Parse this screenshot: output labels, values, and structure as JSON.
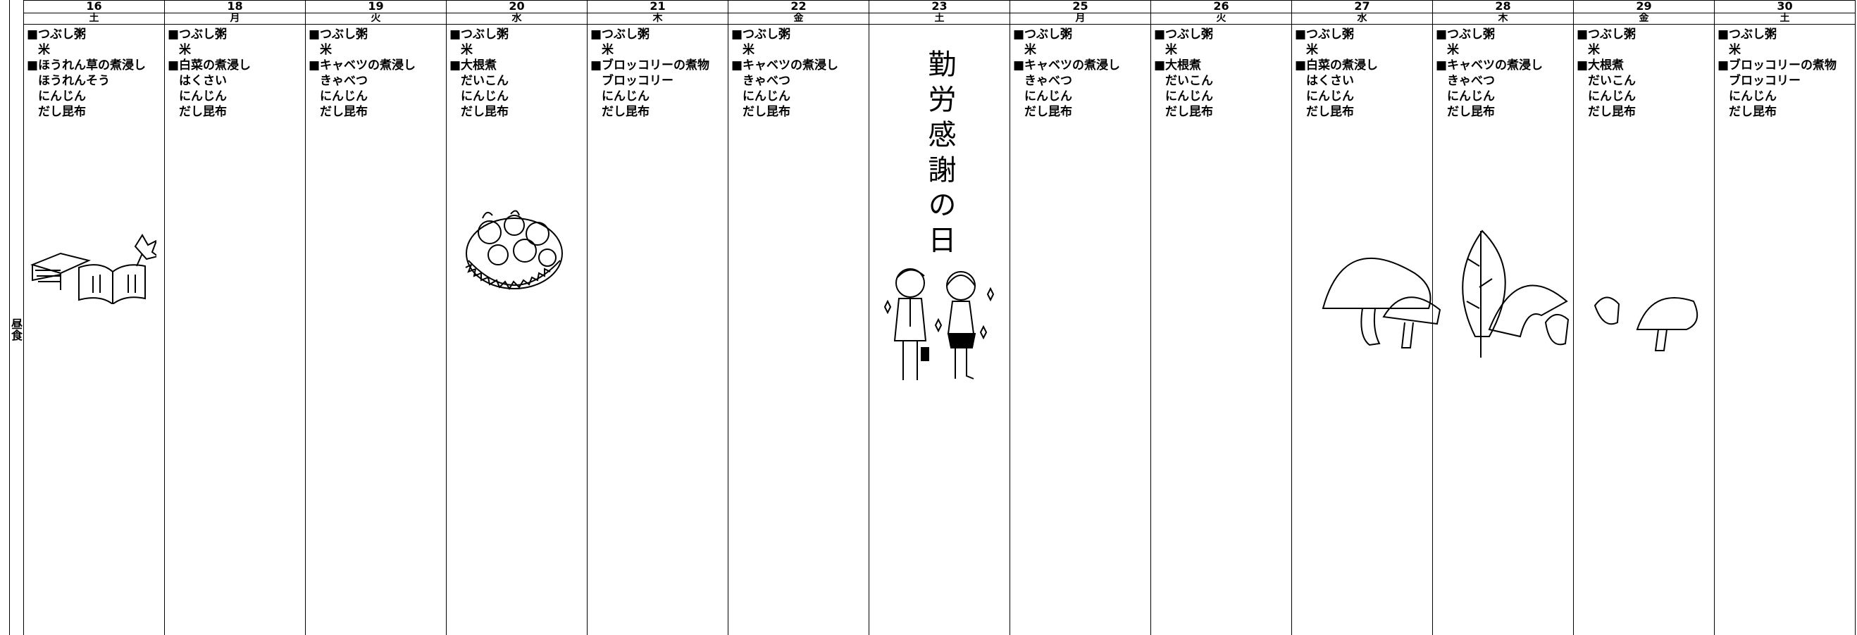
{
  "row_label": "昼食",
  "days": [
    {
      "date": "16",
      "weekday": "土",
      "items": [
        "■つぶし粥",
        "米",
        "■ほうれん草の煮浸し",
        "ほうれんそう",
        "にんじん",
        "だし昆布"
      ]
    },
    {
      "date": "18",
      "weekday": "月",
      "items": [
        "■つぶし粥",
        "米",
        "■白菜の煮浸し",
        "はくさい",
        "にんじん",
        "だし昆布"
      ]
    },
    {
      "date": "19",
      "weekday": "火",
      "items": [
        "■つぶし粥",
        "米",
        "■キャベツの煮浸し",
        "きゃべつ",
        "にんじん",
        "だし昆布"
      ]
    },
    {
      "date": "20",
      "weekday": "水",
      "items": [
        "■つぶし粥",
        "米",
        "■大根煮",
        "だいこん",
        "にんじん",
        "だし昆布"
      ]
    },
    {
      "date": "21",
      "weekday": "木",
      "items": [
        "■つぶし粥",
        "米",
        "■ブロッコリーの煮物",
        "ブロッコリー",
        "にんじん",
        "だし昆布"
      ]
    },
    {
      "date": "22",
      "weekday": "金",
      "items": [
        "■つぶし粥",
        "米",
        "■キャベツの煮浸し",
        "きゃべつ",
        "にんじん",
        "だし昆布"
      ]
    },
    {
      "date": "23",
      "weekday": "土",
      "holiday": "勤労感謝の日"
    },
    {
      "date": "25",
      "weekday": "月",
      "items": [
        "■つぶし粥",
        "米",
        "■キャベツの煮浸し",
        "きゃべつ",
        "にんじん",
        "だし昆布"
      ]
    },
    {
      "date": "26",
      "weekday": "火",
      "items": [
        "■つぶし粥",
        "米",
        "■大根煮",
        "だいこん",
        "にんじん",
        "だし昆布"
      ]
    },
    {
      "date": "27",
      "weekday": "水",
      "items": [
        "■つぶし粥",
        "米",
        "■白菜の煮浸し",
        "はくさい",
        "にんじん",
        "だし昆布"
      ]
    },
    {
      "date": "28",
      "weekday": "木",
      "items": [
        "■つぶし粥",
        "米",
        "■キャベツの煮浸し",
        "きゃべつ",
        "にんじん",
        "だし昆布"
      ]
    },
    {
      "date": "29",
      "weekday": "金",
      "items": [
        "■つぶし粥",
        "米",
        "■大根煮",
        "だいこん",
        "にんじん",
        "だし昆布"
      ]
    },
    {
      "date": "30",
      "weekday": "土",
      "items": [
        "■つぶし粥",
        "米",
        "■ブロッコリーの煮物",
        "ブロッコリー",
        "にんじん",
        "だし昆布"
      ]
    }
  ]
}
